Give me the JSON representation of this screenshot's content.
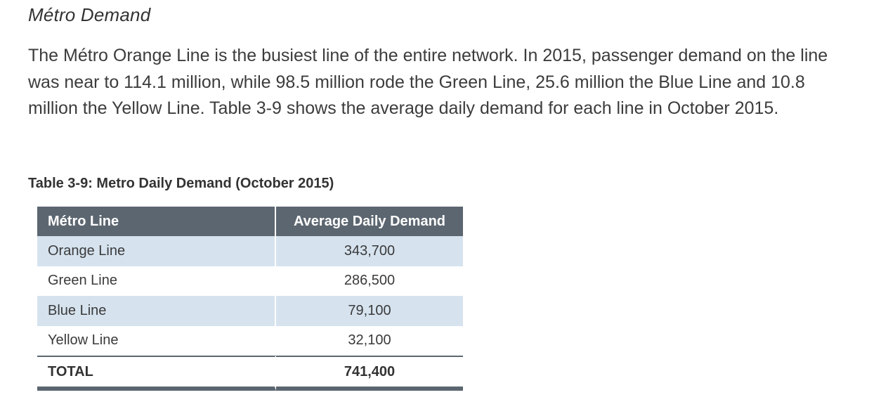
{
  "section_heading": "Métro Demand",
  "paragraph": "The Métro Orange Line is the busiest line of the entire network. In 2015, passenger demand on the line was near to 114.1 million, while 98.5 million rode the Green Line, 25.6 million the Blue Line and 10.8 million the Yellow Line. Table 3-9 shows the average daily demand for each line in October 2015.",
  "table": {
    "caption": "Table 3-9: Metro Daily Demand (October 2015)",
    "headers": [
      "Métro Line",
      "Average Daily Demand"
    ],
    "rows": [
      {
        "line": "Orange Line",
        "demand": "343,700"
      },
      {
        "line": "Green Line",
        "demand": "286,500"
      },
      {
        "line": "Blue Line",
        "demand": "79,100"
      },
      {
        "line": "Yellow Line",
        "demand": "32,100"
      }
    ],
    "total": {
      "label": "TOTAL",
      "value": "741,400"
    }
  },
  "colors": {
    "header_bg": "#5c6670",
    "shaded_row_bg": "#d6e3ef"
  }
}
